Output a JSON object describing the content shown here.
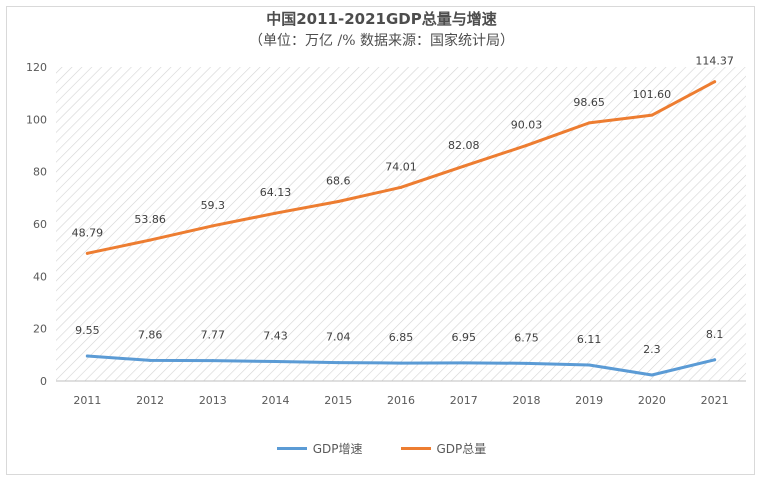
{
  "chart_data": {
    "type": "line",
    "title": "中国2011-2021GDP总量与增速",
    "subtitle": "（单位：万亿 /%      数据来源：国家统计局）",
    "categories": [
      "2011",
      "2012",
      "2013",
      "2014",
      "2015",
      "2016",
      "2017",
      "2018",
      "2019",
      "2020",
      "2021"
    ],
    "ylim": [
      0,
      120
    ],
    "yticks": [
      0,
      20,
      40,
      60,
      80,
      100,
      120
    ],
    "grid": "hatched plot area",
    "legend_position": "bottom",
    "series": [
      {
        "name": "GDP增速",
        "color": "#5b9bd5",
        "values": [
          9.55,
          7.86,
          7.77,
          7.43,
          7.04,
          6.85,
          6.95,
          6.75,
          6.11,
          2.3,
          8.1
        ],
        "labels": [
          "9.55",
          "7.86",
          "7.77",
          "7.43",
          "7.04",
          "6.85",
          "6.95",
          "6.75",
          "6.11",
          "2.3",
          "8.1"
        ]
      },
      {
        "name": "GDP总量",
        "color": "#ed7d31",
        "values": [
          48.79,
          53.86,
          59.3,
          64.13,
          68.6,
          74.01,
          82.08,
          90.03,
          98.65,
          101.6,
          114.37
        ],
        "labels": [
          "48.79",
          "53.86",
          "59.3",
          "64.13",
          "68.6",
          "74.01",
          "82.08",
          "90.03",
          "98.65",
          "101.60",
          "114.37"
        ]
      }
    ]
  }
}
